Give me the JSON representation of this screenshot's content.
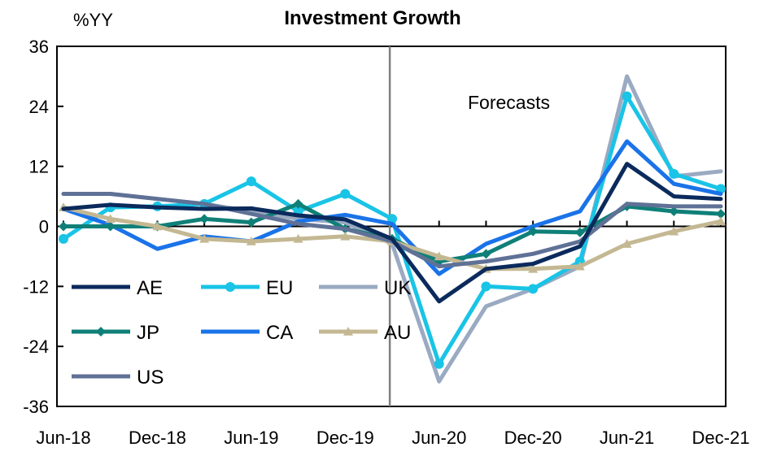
{
  "chart_data": {
    "type": "line",
    "title": "Investment Growth",
    "ylabel": "%YY",
    "xlabel": "",
    "ylim": [
      -36,
      36
    ],
    "yticks": [
      36,
      24,
      12,
      0,
      -12,
      -24,
      -36
    ],
    "x": [
      "Jun-18",
      "Sep-18",
      "Dec-18",
      "Mar-19",
      "Jun-19",
      "Sep-19",
      "Dec-19",
      "Mar-20",
      "Jun-20",
      "Sep-20",
      "Dec-20",
      "Mar-21",
      "Jun-21",
      "Sep-21",
      "Dec-21"
    ],
    "xtick_labels": [
      "Jun-18",
      "Dec-18",
      "Jun-19",
      "Dec-19",
      "Jun-20",
      "Dec-20",
      "Jun-21",
      "Dec-21"
    ],
    "annotation": "Forecasts",
    "forecast_start": "Mar-20",
    "grid": false,
    "legend_position": "lower-left",
    "series": [
      {
        "name": "AE",
        "color": "#0b2a5c",
        "marker": "none",
        "values": [
          3.5,
          4.3,
          3.8,
          3.5,
          3.6,
          2.2,
          1.4,
          -2.5,
          -15.0,
          -8.5,
          -7.5,
          -4.0,
          12.5,
          6.0,
          5.5
        ]
      },
      {
        "name": "EU",
        "color": "#19c4e6",
        "marker": "circle",
        "values": [
          -2.5,
          3.8,
          4.0,
          4.5,
          9.0,
          3.0,
          6.5,
          1.5,
          -27.5,
          -12.0,
          -12.5,
          -7.0,
          26.0,
          10.5,
          7.5
        ]
      },
      {
        "name": "UK",
        "color": "#9aaac2",
        "marker": "none",
        "values": [
          6.5,
          6.5,
          5.5,
          4.5,
          3.0,
          1.5,
          0.8,
          -3.5,
          -31.0,
          -16.0,
          -12.5,
          -8.0,
          30.0,
          10.0,
          11.0
        ]
      },
      {
        "name": "JP",
        "color": "#0f8078",
        "marker": "diamond",
        "values": [
          0.0,
          0.0,
          0.0,
          1.5,
          0.8,
          4.5,
          -0.5,
          -2.5,
          -7.0,
          -5.5,
          -1.0,
          -1.2,
          4.0,
          3.0,
          2.5
        ]
      },
      {
        "name": "CA",
        "color": "#1a73e8",
        "marker": "none",
        "values": [
          3.5,
          0.3,
          -4.5,
          -2.0,
          -3.0,
          1.0,
          2.3,
          0.5,
          -9.5,
          -3.5,
          0.0,
          3.0,
          17.0,
          8.5,
          6.5
        ]
      },
      {
        "name": "AU",
        "color": "#c4b893",
        "marker": "triangle",
        "values": [
          3.8,
          1.5,
          0.0,
          -2.5,
          -3.0,
          -2.5,
          -2.0,
          -3.0,
          -6.0,
          -8.5,
          -8.5,
          -8.0,
          -3.5,
          -1.0,
          1.0
        ]
      },
      {
        "name": "US",
        "color": "#5f7196",
        "marker": "none",
        "values": [
          6.5,
          6.5,
          5.5,
          4.5,
          2.5,
          0.5,
          -0.5,
          -3.0,
          -8.0,
          -7.0,
          -5.5,
          -3.0,
          4.5,
          4.0,
          4.0
        ]
      }
    ]
  }
}
